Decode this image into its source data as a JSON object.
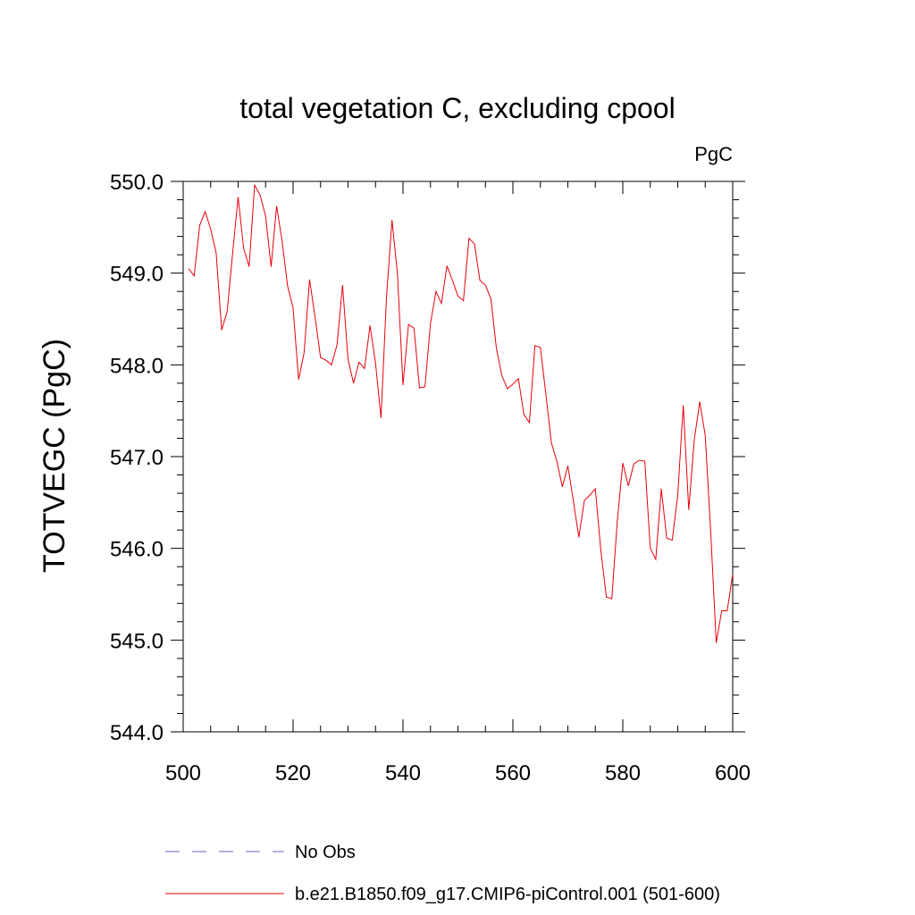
{
  "chart_data": {
    "type": "line",
    "title": "total vegetation C, excluding cpool",
    "units": "PgC",
    "xlabel": "",
    "ylabel": "TOTVEGC  (PgC)",
    "xlim": [
      500,
      600
    ],
    "ylim": [
      544.0,
      550.0
    ],
    "xticks": [
      500,
      520,
      540,
      560,
      580,
      600
    ],
    "xtick_labels": [
      "500",
      "520",
      "540",
      "560",
      "580",
      "600"
    ],
    "yticks": [
      544.0,
      545.0,
      546.0,
      547.0,
      548.0,
      549.0,
      550.0
    ],
    "ytick_labels": [
      "544.0",
      "545.0",
      "546.0",
      "547.0",
      "548.0",
      "549.0",
      "550.0"
    ],
    "series": [
      {
        "name": "b.e21.B1850.f09_g17.CMIP6-piControl.001 (501-600)",
        "color": "#e8000b",
        "style": "solid",
        "x": [
          501,
          502,
          503,
          504,
          505,
          506,
          507,
          508,
          509,
          510,
          511,
          512,
          513,
          514,
          515,
          516,
          517,
          518,
          519,
          520,
          521,
          522,
          523,
          524,
          525,
          526,
          527,
          528,
          529,
          530,
          531,
          532,
          533,
          534,
          535,
          536,
          537,
          538,
          539,
          540,
          541,
          542,
          543,
          544,
          545,
          546,
          547,
          548,
          549,
          550,
          551,
          552,
          553,
          554,
          555,
          556,
          557,
          558,
          559,
          560,
          561,
          562,
          563,
          564,
          565,
          566,
          567,
          568,
          569,
          570,
          571,
          572,
          573,
          574,
          575,
          576,
          577,
          578,
          579,
          580,
          581,
          582,
          583,
          584,
          585,
          586,
          587,
          588,
          589,
          590,
          591,
          592,
          593,
          594,
          595,
          596,
          597,
          598,
          599,
          600
        ],
        "values": [
          549.05,
          548.97,
          549.52,
          549.67,
          549.48,
          549.22,
          548.38,
          548.58,
          549.22,
          549.83,
          549.27,
          549.07,
          549.96,
          549.85,
          549.62,
          549.07,
          549.73,
          549.35,
          548.86,
          548.62,
          547.84,
          548.13,
          548.93,
          548.52,
          548.08,
          548.05,
          548.0,
          548.22,
          548.87,
          548.06,
          547.8,
          548.03,
          547.96,
          548.43,
          548.02,
          547.42,
          548.74,
          549.58,
          548.98,
          547.78,
          548.44,
          548.4,
          547.75,
          547.76,
          548.45,
          548.8,
          548.67,
          549.08,
          548.92,
          548.75,
          548.7,
          549.38,
          549.32,
          548.92,
          548.87,
          548.72,
          548.18,
          547.88,
          547.74,
          547.79,
          547.85,
          547.46,
          547.37,
          548.21,
          548.19,
          547.68,
          547.15,
          546.95,
          546.67,
          546.9,
          546.52,
          546.12,
          546.52,
          546.58,
          546.65,
          545.98,
          545.47,
          545.45,
          546.3,
          546.93,
          546.68,
          546.92,
          546.96,
          546.95,
          546.0,
          545.88,
          546.65,
          546.11,
          546.09,
          546.58,
          547.56,
          546.42,
          547.18,
          547.6,
          547.23,
          546.17,
          544.97,
          545.32,
          545.32,
          545.72
        ]
      },
      {
        "name": "No Obs",
        "color": "#6b63c9",
        "style": "dashed",
        "x": [],
        "values": []
      }
    ],
    "legend_position": "bottom-left"
  }
}
